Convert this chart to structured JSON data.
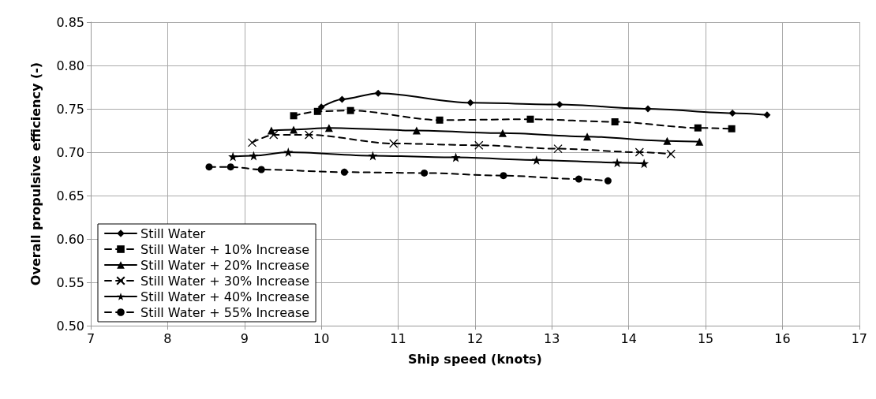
{
  "chart_data": {
    "type": "line",
    "xlabel": "Ship speed (knots)",
    "ylabel": "Overall propulsive efficiency (-)",
    "xlim": [
      7,
      17
    ],
    "xticks": [
      7,
      8,
      9,
      10,
      11,
      12,
      13,
      14,
      15,
      16,
      17
    ],
    "ylim": [
      0.5,
      0.85
    ],
    "yticks": [
      {
        "value": 0.5,
        "label": "0.50"
      },
      0.55,
      {
        "value": 0.6,
        "label": "0.60"
      },
      0.65,
      {
        "value": 0.7,
        "label": "0.70"
      },
      0.75,
      {
        "value": 0.8,
        "label": "0.80"
      },
      0.85
    ],
    "grid": true,
    "legend": "bottom left",
    "series": [
      {
        "name": "Still Water",
        "color": "#000000",
        "marker": "diamond",
        "line_style": "solid",
        "x": [
          10.0,
          10.27,
          10.74,
          11.94,
          13.1,
          14.25,
          15.35,
          15.8
        ],
        "values": [
          0.752,
          0.761,
          0.768,
          0.757,
          0.755,
          0.75,
          0.745,
          0.743
        ]
      },
      {
        "name": "Still Water + 10% Increase",
        "color": "#000000",
        "marker": "square",
        "line_style": "dashed",
        "x": [
          9.64,
          9.95,
          10.38,
          11.54,
          12.72,
          13.82,
          14.9,
          15.34
        ],
        "values": [
          0.742,
          0.747,
          0.748,
          0.737,
          0.738,
          0.735,
          0.728,
          0.727
        ]
      },
      {
        "name": "Still Water + 20% Increase",
        "color": "#000000",
        "marker": "triangle",
        "line_style": "solid",
        "x": [
          9.35,
          9.64,
          10.1,
          11.24,
          12.36,
          13.46,
          14.5,
          14.92
        ],
        "values": [
          0.725,
          0.726,
          0.728,
          0.725,
          0.722,
          0.718,
          0.713,
          0.712
        ]
      },
      {
        "name": "Still Water + 30% Increase",
        "color": "#000000",
        "marker": "cross",
        "line_style": "dashed",
        "x": [
          9.1,
          9.38,
          9.84,
          10.94,
          12.05,
          13.08,
          14.14,
          14.55
        ],
        "values": [
          0.711,
          0.72,
          0.72,
          0.71,
          0.708,
          0.704,
          0.7,
          0.698
        ]
      },
      {
        "name": "Still Water + 40% Increase",
        "color": "#000000",
        "marker": "star",
        "line_style": "solid",
        "x": [
          8.85,
          9.12,
          9.57,
          10.67,
          11.75,
          12.8,
          13.85,
          14.2
        ],
        "values": [
          0.695,
          0.696,
          0.7,
          0.696,
          0.694,
          0.691,
          0.688,
          0.687
        ]
      },
      {
        "name": "Still Water + 55% Increase",
        "color": "#000000",
        "marker": "circle",
        "line_style": "dashed",
        "x": [
          8.54,
          8.82,
          9.22,
          10.3,
          11.34,
          12.37,
          13.35,
          13.73
        ],
        "values": [
          0.683,
          0.683,
          0.68,
          0.677,
          0.676,
          0.673,
          0.669,
          0.667
        ]
      }
    ]
  }
}
